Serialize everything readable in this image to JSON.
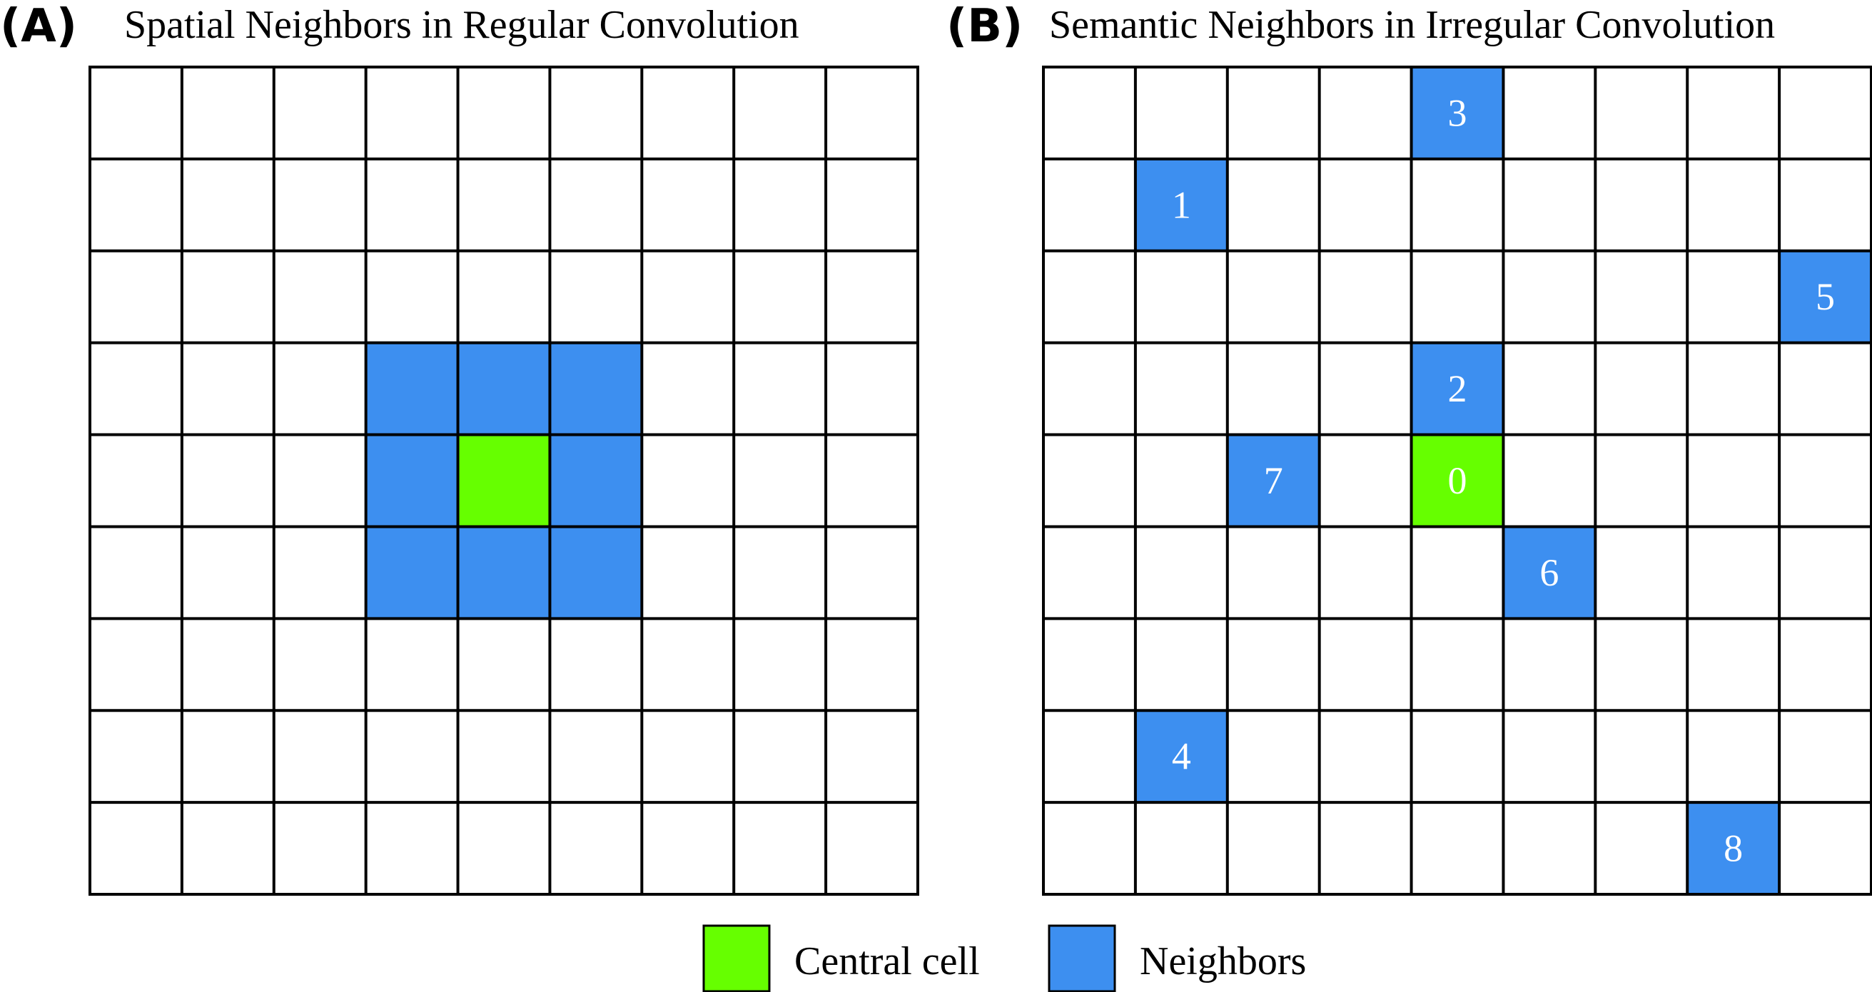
{
  "panels": [
    {
      "id": "A",
      "letter": "(A)",
      "title": "Spatial Neighbors in Regular Convolution",
      "grid_size": 9,
      "central": {
        "row": 4,
        "col": 4,
        "label": ""
      },
      "neighbors": [
        {
          "row": 3,
          "col": 3,
          "label": ""
        },
        {
          "row": 3,
          "col": 4,
          "label": ""
        },
        {
          "row": 3,
          "col": 5,
          "label": ""
        },
        {
          "row": 4,
          "col": 3,
          "label": ""
        },
        {
          "row": 4,
          "col": 5,
          "label": ""
        },
        {
          "row": 5,
          "col": 3,
          "label": ""
        },
        {
          "row": 5,
          "col": 4,
          "label": ""
        },
        {
          "row": 5,
          "col": 5,
          "label": ""
        }
      ]
    },
    {
      "id": "B",
      "letter": "(B)",
      "title": "Semantic Neighbors in Irregular Convolution",
      "grid_size": 9,
      "central": {
        "row": 4,
        "col": 4,
        "label": "0"
      },
      "neighbors": [
        {
          "row": 1,
          "col": 1,
          "label": "1"
        },
        {
          "row": 3,
          "col": 4,
          "label": "2"
        },
        {
          "row": 0,
          "col": 4,
          "label": "3"
        },
        {
          "row": 7,
          "col": 1,
          "label": "4"
        },
        {
          "row": 2,
          "col": 8,
          "label": "5"
        },
        {
          "row": 5,
          "col": 5,
          "label": "6"
        },
        {
          "row": 4,
          "col": 2,
          "label": "7"
        },
        {
          "row": 8,
          "col": 7,
          "label": "8"
        }
      ]
    }
  ],
  "legend": {
    "central_label": "Central cell",
    "neighbors_label": "Neighbors"
  },
  "colors": {
    "central": "#66ff00",
    "neighbor": "#3d8ff0",
    "grid_line": "#000000",
    "cell_text": "#ffffff"
  }
}
